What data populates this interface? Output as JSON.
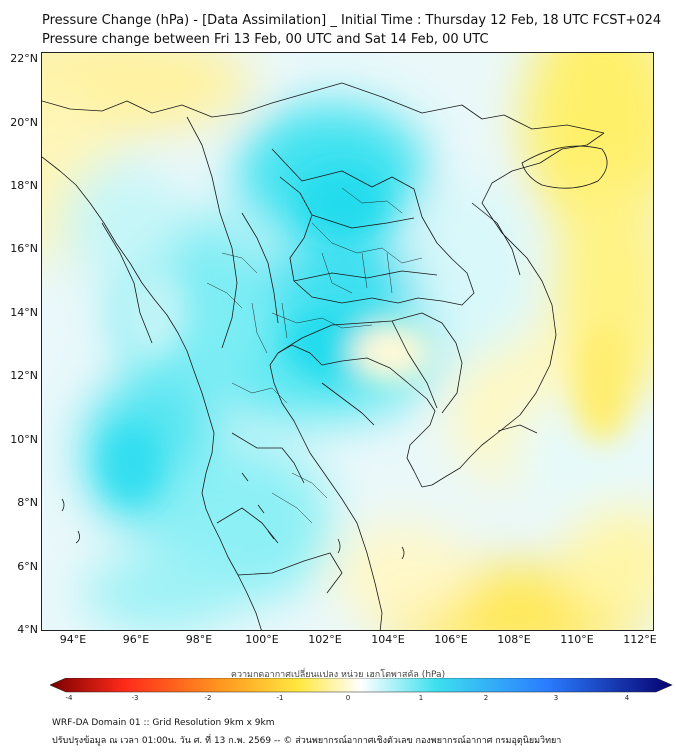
{
  "header": {
    "title_line1": "Pressure Change (hPa) - [Data Assimilation] _ Initial Time : Thursday 12 Feb, 18 UTC FCST+024",
    "title_line2": "Pressure change between Fri 13 Feb, 00 UTC and Sat 14 Feb, 00 UTC"
  },
  "map": {
    "lat_labels": [
      "22°N",
      "20°N",
      "18°N",
      "16°N",
      "14°N",
      "12°N",
      "10°N",
      "8°N",
      "6°N",
      "4°N"
    ],
    "lon_labels": [
      "94°E",
      "96°E",
      "98°E",
      "100°E",
      "102°E",
      "104°E",
      "106°E",
      "108°E",
      "110°E",
      "112°E"
    ],
    "lat_range": [
      4,
      22.3
    ],
    "lon_range": [
      93,
      112.5
    ]
  },
  "colorbar": {
    "title": "ความกดอากาศเปลี่ยนแปลง หน่วย เฮกโตพาสคัล (hPa)",
    "ticks": [
      "-4",
      "-3",
      "-2",
      "-1",
      "0",
      "1",
      "2",
      "3",
      "4"
    ],
    "range": [
      -4,
      4
    ],
    "colors": {
      "neg_dark": "#7a0000",
      "neg_red": "#ff2a1a",
      "neg_orange": "#ff9a20",
      "neg_yellow": "#ffe840",
      "neutral": "#ffffff",
      "pos_cyan": "#3ee0ee",
      "pos_blue": "#2a7cff",
      "pos_navy": "#070070"
    }
  },
  "footer": {
    "line1": "WRF-DA Domain 01 :: Grid Resolution 9km x 9km",
    "line2": "ปรับปรุงข้อมูล ณ เวลา 01:00น. วัน ศ. ที่ 13 ก.พ. 2569 -- © ส่วนพยากรณ์อากาศเชิงตัวเลข กองพยากรณ์อากาศ กรมอุตุนิยมวิทยา"
  }
}
